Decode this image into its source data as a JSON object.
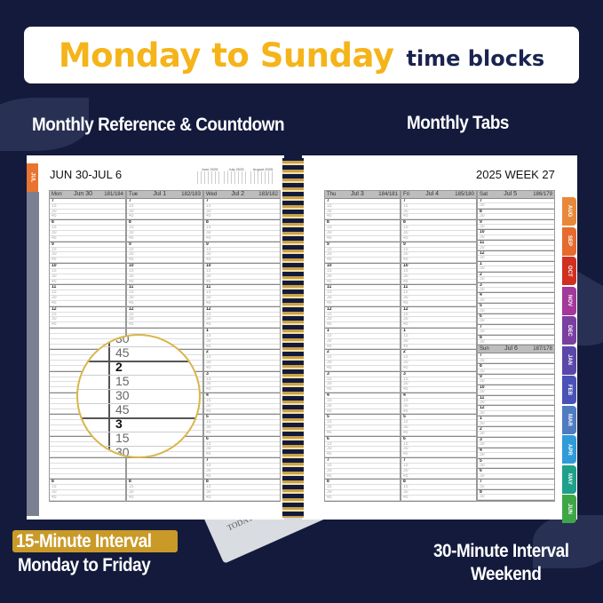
{
  "banner": {
    "highlight": "Monday to Sunday",
    "rest": "time blocks"
  },
  "callouts": {
    "monthly_reference": "Monthly Reference & Countdown",
    "monthly_tabs": "Monthly Tabs",
    "interval_15_line1": "15-Minute Interval",
    "interval_15_line2": "Monday to Friday",
    "interval_30_line1": "30-Minute Interval",
    "interval_30_line2": "Weekend"
  },
  "colors": {
    "background": "#131a3c",
    "accent_gold": "#f4b41a",
    "navy": "#1b2350"
  },
  "left_page": {
    "title": "JUN 30-JUL 6",
    "side_tab": "JUL",
    "mini_calendars": [
      "June 2025",
      "July 2025",
      "August 2025"
    ],
    "days": [
      {
        "dow": "Mon",
        "date": "Jun  30",
        "count": "181/184"
      },
      {
        "dow": "Tue",
        "date": "Jul  1",
        "count": "182/183"
      },
      {
        "dow": "Wed",
        "date": "Jul  2",
        "count": "183/182"
      }
    ]
  },
  "right_page": {
    "title": "2025  WEEK 27",
    "days": [
      {
        "dow": "Thu",
        "date": "Jul  3",
        "count": "184/181"
      },
      {
        "dow": "Fri",
        "date": "Jul  4",
        "count": "185/180"
      }
    ],
    "weekend": [
      {
        "dow": "Sat",
        "date": "Jul  5",
        "count": "186/179"
      },
      {
        "dow": "Sun",
        "date": "Jul  6",
        "count": "187/178"
      }
    ]
  },
  "hours": [
    "7",
    "8",
    "9",
    "10",
    "11",
    "12",
    "1",
    "2",
    "3",
    "4",
    "5",
    "6",
    "7",
    "8"
  ],
  "quarter_labels": [
    "15",
    "30",
    "45"
  ],
  "half_labels": [
    "30"
  ],
  "magnifier": [
    "30",
    "45",
    "2",
    "15",
    "30",
    "45",
    "3",
    "15",
    "30"
  ],
  "bookmark": {
    "label": "TODAY"
  },
  "tabs": [
    {
      "label": "AUG",
      "color": "#e8893a"
    },
    {
      "label": "SEP",
      "color": "#e66b2f"
    },
    {
      "label": "OCT",
      "color": "#d0301f"
    },
    {
      "label": "NOV",
      "color": "#a3399a"
    },
    {
      "label": "DEC",
      "color": "#7b3fa0"
    },
    {
      "label": "JAN",
      "color": "#5b47a8"
    },
    {
      "label": "FEB",
      "color": "#4b52b5"
    },
    {
      "label": "MAR",
      "color": "#4f7cc0"
    },
    {
      "label": "APR",
      "color": "#2f9bd9"
    },
    {
      "label": "MAY",
      "color": "#1fa08a"
    },
    {
      "label": "JUN",
      "color": "#3fa648"
    }
  ]
}
